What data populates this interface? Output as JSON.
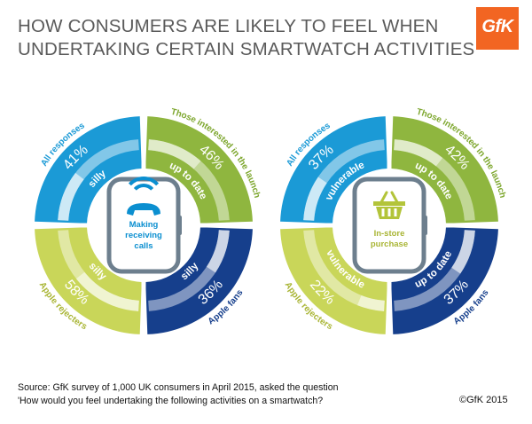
{
  "title_lines": [
    "HOW CONSUMERS ARE LIKELY TO FEEL WHEN",
    "UNDERTAKING CERTAIN SMARTWATCH ACTIVITIES"
  ],
  "logo": {
    "text": "GfK",
    "color": "#f26522"
  },
  "footer": {
    "source": "Source: GfK survey of 1,000 UK consumers in April 2015, asked the question",
    "question": "'How would you feel undertaking the following activities on a smartwatch?",
    "copyright": "©GfK 2015"
  },
  "colors": {
    "all_responses": "#1b9ad6",
    "interested": "#8fb63f",
    "apple_rejecters": "#c9d659",
    "apple_fans": "#163f8c",
    "watch_border": "#6d7f8e"
  },
  "chart_data": [
    {
      "type": "donut",
      "activity": "Making receiving calls",
      "activity_lines": [
        "Making",
        "receiving",
        "calls"
      ],
      "icon": "phone-icon",
      "segments": [
        {
          "group": "All responses",
          "feeling": "silly",
          "value": 41
        },
        {
          "group": "Those interested in the launch",
          "feeling": "up to date",
          "value": 46
        },
        {
          "group": "Apple fans",
          "feeling": "silly",
          "value": 36
        },
        {
          "group": "Apple rejecters",
          "feeling": "silly",
          "value": 58
        }
      ]
    },
    {
      "type": "donut",
      "activity": "In-store purchase",
      "activity_lines": [
        "In-store",
        "purchase"
      ],
      "icon": "shopping-basket-icon",
      "segments": [
        {
          "group": "All responses",
          "feeling": "vulnerable",
          "value": 37
        },
        {
          "group": "Those interested in the launch",
          "feeling": "up to date",
          "value": 42
        },
        {
          "group": "Apple fans",
          "feeling": "up to date",
          "value": 37
        },
        {
          "group": "Apple rejecters",
          "feeling": "vulnerable",
          "value": 22
        }
      ]
    }
  ]
}
